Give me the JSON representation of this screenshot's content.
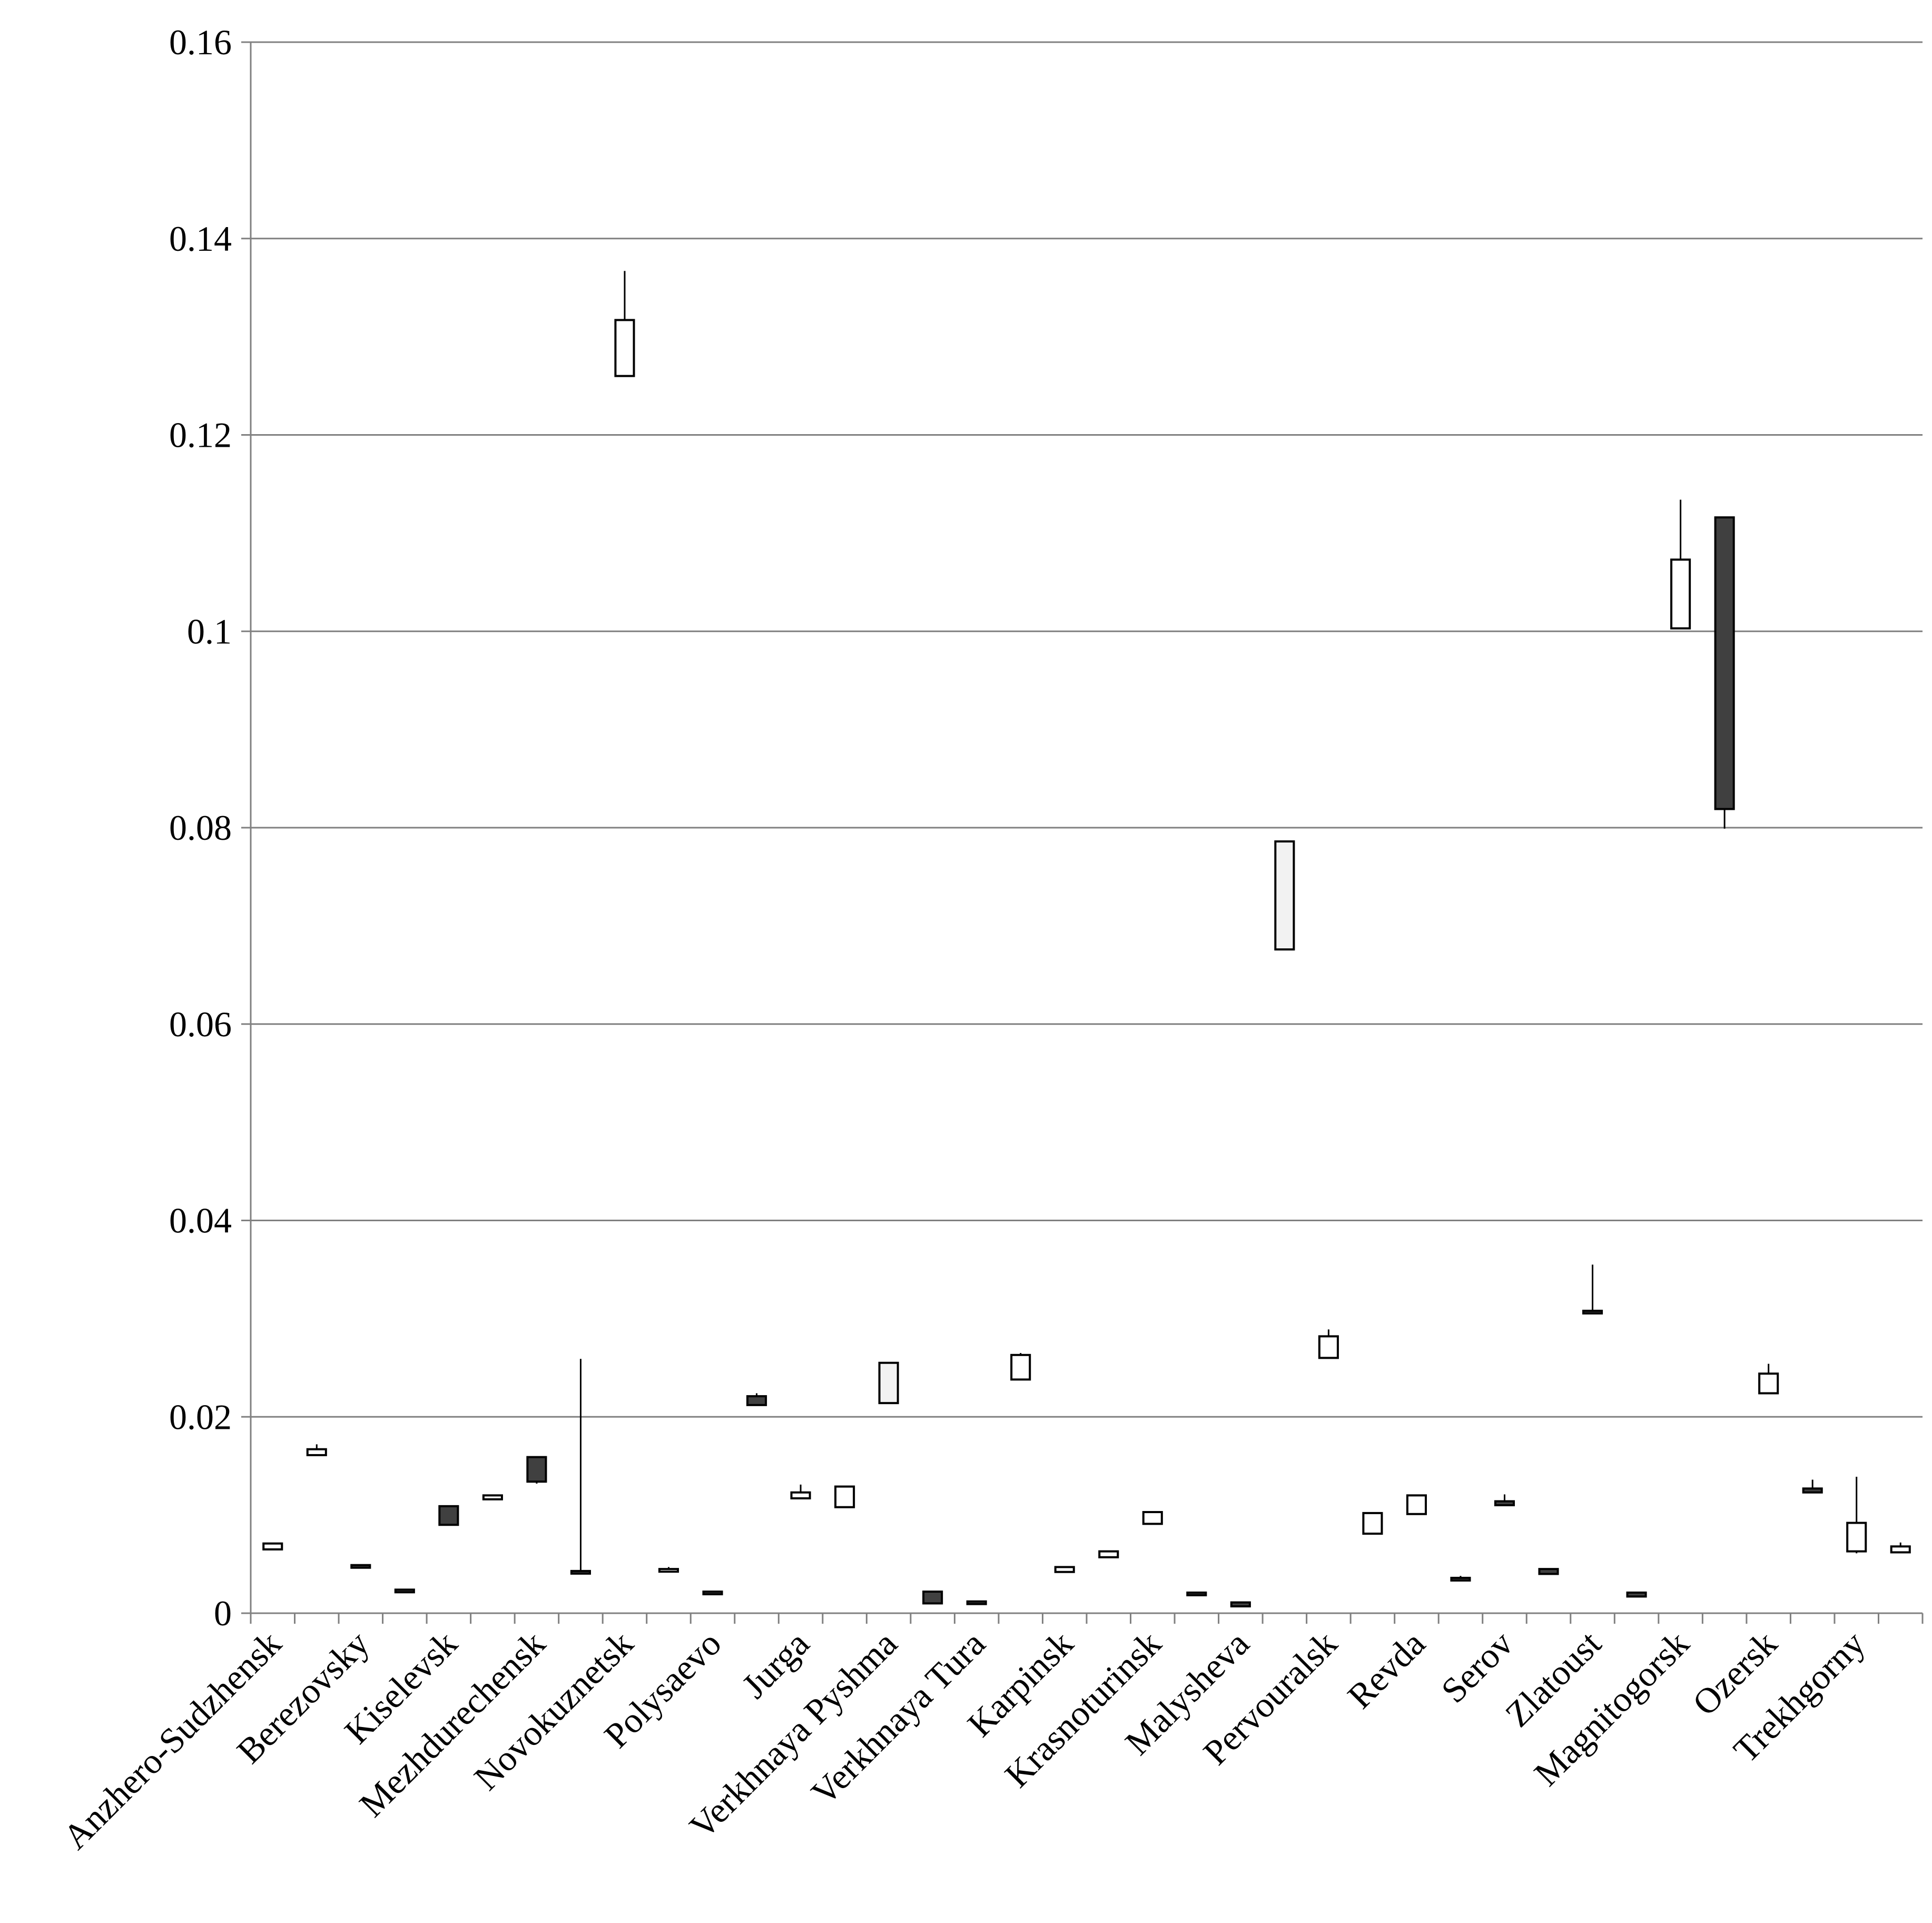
{
  "chart_data": {
    "type": "candlestick",
    "title": "",
    "xlabel": "",
    "ylabel": "",
    "ylim": [
      0,
      0.16
    ],
    "yticks": [
      0,
      0.02,
      0.04,
      0.06,
      0.08,
      0.1,
      0.12,
      0.14,
      0.16
    ],
    "ytick_labels": [
      "0",
      "0.02",
      "0.04",
      "0.06",
      "0.08",
      "0.1",
      "0.12",
      "0.14",
      "0.16"
    ],
    "grid": true,
    "legend": "none",
    "series_colors": {
      "up": "#ffffff",
      "up_alt": "#f2f2f2",
      "down": "#404040",
      "stroke": "#000000",
      "grid": "#808080"
    },
    "categories": [
      "Anzhero-Sudzhensk",
      "",
      "Berezovsky",
      "",
      "Kiselevsk",
      "",
      "Mezhdurechensk",
      "",
      "Novokuznetsk",
      "",
      "Polysaevo",
      "",
      "Jurga",
      "",
      "Verkhnaya Pyshma",
      "",
      "Verkhnaya Tura",
      "",
      "Karpinsk",
      "",
      "Krasnoturinsk",
      "",
      "Malysheva",
      "",
      "Pervouralsk",
      "",
      "Revda",
      "",
      "Serov",
      "",
      "Zlatoust",
      "",
      "Magnitogorsk",
      "",
      "Ozersk",
      "",
      "Trekhgorny",
      ""
    ],
    "series": [
      {
        "name": "Anzhero-Sudzhensk",
        "open": 0.0065,
        "close": 0.0071,
        "high": 0.0071,
        "low": 0.0065,
        "fill": "up"
      },
      {
        "name": "",
        "open": 0.0161,
        "close": 0.0167,
        "high": 0.0172,
        "low": 0.0161,
        "fill": "up"
      },
      {
        "name": "Berezovsky",
        "open": 0.0049,
        "close": 0.0047,
        "high": 0.0049,
        "low": 0.0047,
        "fill": "down"
      },
      {
        "name": "",
        "open": 0.0024,
        "close": 0.0022,
        "high": 0.0024,
        "low": 0.0022,
        "fill": "down"
      },
      {
        "name": "Kiselevsk",
        "open": 0.0109,
        "close": 0.009,
        "high": 0.0109,
        "low": 0.009,
        "fill": "down"
      },
      {
        "name": "",
        "open": 0.0116,
        "close": 0.012,
        "high": 0.012,
        "low": 0.0116,
        "fill": "up"
      },
      {
        "name": "Mezhdurechensk",
        "open": 0.0159,
        "close": 0.0134,
        "high": 0.0159,
        "low": 0.0132,
        "fill": "down"
      },
      {
        "name": "",
        "open": 0.0043,
        "close": 0.0041,
        "high": 0.0259,
        "low": 0.0041,
        "fill": "down"
      },
      {
        "name": "Novokuznetsk",
        "open": 0.126,
        "close": 0.1317,
        "high": 0.1367,
        "low": 0.126,
        "fill": "up"
      },
      {
        "name": "",
        "open": 0.0043,
        "close": 0.0045,
        "high": 0.0047,
        "low": 0.0043,
        "fill": "up"
      },
      {
        "name": "Polysaevo",
        "open": 0.0022,
        "close": 0.0021,
        "high": 0.0022,
        "low": 0.0021,
        "fill": "down"
      },
      {
        "name": "",
        "open": 0.0221,
        "close": 0.0212,
        "high": 0.0224,
        "low": 0.0212,
        "fill": "down"
      },
      {
        "name": "Jurga",
        "open": 0.0117,
        "close": 0.0123,
        "high": 0.0131,
        "low": 0.0117,
        "fill": "up"
      },
      {
        "name": "",
        "open": 0.0108,
        "close": 0.0129,
        "high": 0.0129,
        "low": 0.0108,
        "fill": "up"
      },
      {
        "name": "Verkhnaya Pyshma",
        "open": 0.0214,
        "close": 0.0255,
        "high": 0.0255,
        "low": 0.0214,
        "fill": "up_alt"
      },
      {
        "name": "",
        "open": 0.0022,
        "close": 0.001,
        "high": 0.0022,
        "low": 0.001,
        "fill": "down"
      },
      {
        "name": "Verkhnaya Tura",
        "open": 0.0012,
        "close": 0.001,
        "high": 0.0012,
        "low": 0.001,
        "fill": "down"
      },
      {
        "name": "",
        "open": 0.0238,
        "close": 0.0263,
        "high": 0.0265,
        "low": 0.0238,
        "fill": "up"
      },
      {
        "name": "Karpinsk",
        "open": 0.0042,
        "close": 0.0047,
        "high": 0.0047,
        "low": 0.0042,
        "fill": "up"
      },
      {
        "name": "",
        "open": 0.0057,
        "close": 0.0063,
        "high": 0.0063,
        "low": 0.0057,
        "fill": "up"
      },
      {
        "name": "Krasnoturinsk",
        "open": 0.0091,
        "close": 0.0103,
        "high": 0.0103,
        "low": 0.0091,
        "fill": "up"
      },
      {
        "name": "",
        "open": 0.0021,
        "close": 0.002,
        "high": 0.0021,
        "low": 0.002,
        "fill": "down"
      },
      {
        "name": "Malysheva",
        "open": 0.0011,
        "close": 0.0007,
        "high": 0.0011,
        "low": 0.0007,
        "fill": "down"
      },
      {
        "name": "",
        "open": 0.0676,
        "close": 0.0786,
        "high": 0.0786,
        "low": 0.0676,
        "fill": "up_alt"
      },
      {
        "name": "Pervouralsk",
        "open": 0.026,
        "close": 0.0282,
        "high": 0.0289,
        "low": 0.026,
        "fill": "up"
      },
      {
        "name": "",
        "open": 0.0081,
        "close": 0.0102,
        "high": 0.0102,
        "low": 0.0081,
        "fill": "up"
      },
      {
        "name": "Revda",
        "open": 0.0101,
        "close": 0.012,
        "high": 0.012,
        "low": 0.0101,
        "fill": "up"
      },
      {
        "name": "",
        "open": 0.0036,
        "close": 0.0034,
        "high": 0.0038,
        "low": 0.0034,
        "fill": "down"
      },
      {
        "name": "Serov",
        "open": 0.0114,
        "close": 0.011,
        "high": 0.0121,
        "low": 0.011,
        "fill": "down"
      },
      {
        "name": "",
        "open": 0.0045,
        "close": 0.004,
        "high": 0.0045,
        "low": 0.004,
        "fill": "down"
      },
      {
        "name": "Zlatoust",
        "open": 0.0308,
        "close": 0.0306,
        "high": 0.0355,
        "low": 0.0306,
        "fill": "down"
      },
      {
        "name": "",
        "open": 0.0021,
        "close": 0.0017,
        "high": 0.0021,
        "low": 0.0017,
        "fill": "down"
      },
      {
        "name": "Magnitogorsk",
        "open": 0.1003,
        "close": 0.1073,
        "high": 0.1134,
        "low": 0.1003,
        "fill": "up"
      },
      {
        "name": "",
        "open": 0.1116,
        "close": 0.0819,
        "high": 0.1116,
        "low": 0.0799,
        "fill": "down"
      },
      {
        "name": "Ozersk",
        "open": 0.0224,
        "close": 0.0244,
        "high": 0.0254,
        "low": 0.0224,
        "fill": "up"
      },
      {
        "name": "",
        "open": 0.0127,
        "close": 0.0123,
        "high": 0.0136,
        "low": 0.0123,
        "fill": "down"
      },
      {
        "name": "Trekhgorny",
        "open": 0.0063,
        "close": 0.0092,
        "high": 0.0139,
        "low": 0.0061,
        "fill": "up"
      },
      {
        "name": "",
        "open": 0.0062,
        "close": 0.0068,
        "high": 0.0072,
        "low": 0.0062,
        "fill": "up"
      }
    ]
  }
}
